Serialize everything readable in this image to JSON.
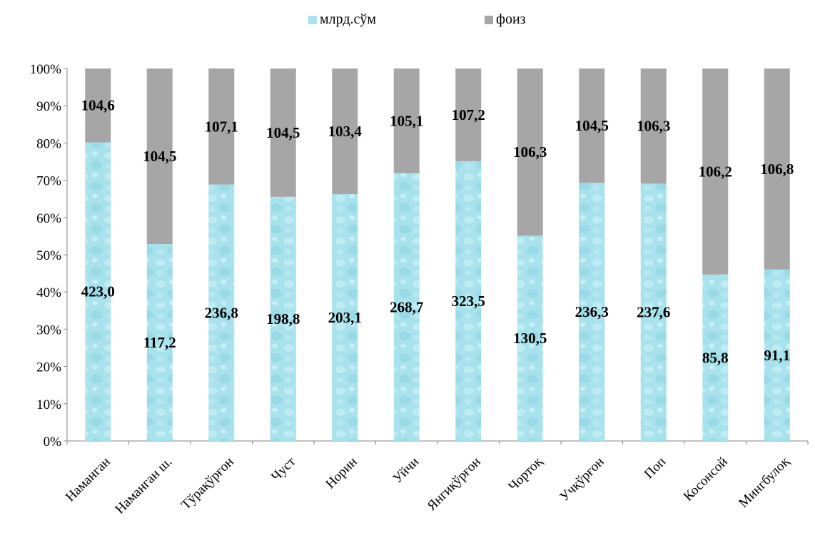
{
  "chart_data": {
    "type": "bar",
    "stacked": "percent",
    "categories": [
      "Наманган",
      "Наманган ш.",
      "Тўрақўрғон",
      "Чуст",
      "Норин",
      "Уйчи",
      "Янгиқўрғон",
      "Чортоқ",
      "Учқўрғон",
      "Поп",
      "Косонсой",
      "Мингбулоқ"
    ],
    "series": [
      {
        "name": "млрд.сўм",
        "color": "#a8e2ec",
        "values": [
          423.0,
          117.2,
          236.8,
          198.8,
          203.1,
          268.7,
          323.5,
          130.5,
          236.3,
          237.6,
          85.8,
          91.1
        ],
        "labels": [
          "423,0",
          "117,2",
          "236,8",
          "198,8",
          "203,1",
          "268,7",
          "323,5",
          "130,5",
          "236,3",
          "237,6",
          "85,8",
          "91,1"
        ]
      },
      {
        "name": "фоиз",
        "color": "#a6a6a6",
        "values": [
          104.6,
          104.5,
          107.1,
          104.5,
          103.4,
          105.1,
          107.2,
          106.3,
          104.5,
          106.3,
          106.2,
          106.8
        ],
        "labels": [
          "104,6",
          "104,5",
          "107,1",
          "104,5",
          "103,4",
          "105,1",
          "107,2",
          "106,3",
          "104,5",
          "106,3",
          "106,2",
          "106,8"
        ]
      }
    ],
    "yticks": [
      "0%",
      "10%",
      "20%",
      "30%",
      "40%",
      "50%",
      "60%",
      "70%",
      "80%",
      "90%",
      "100%"
    ],
    "ylim": [
      0,
      100
    ],
    "legend_position": "top",
    "grid": false
  }
}
